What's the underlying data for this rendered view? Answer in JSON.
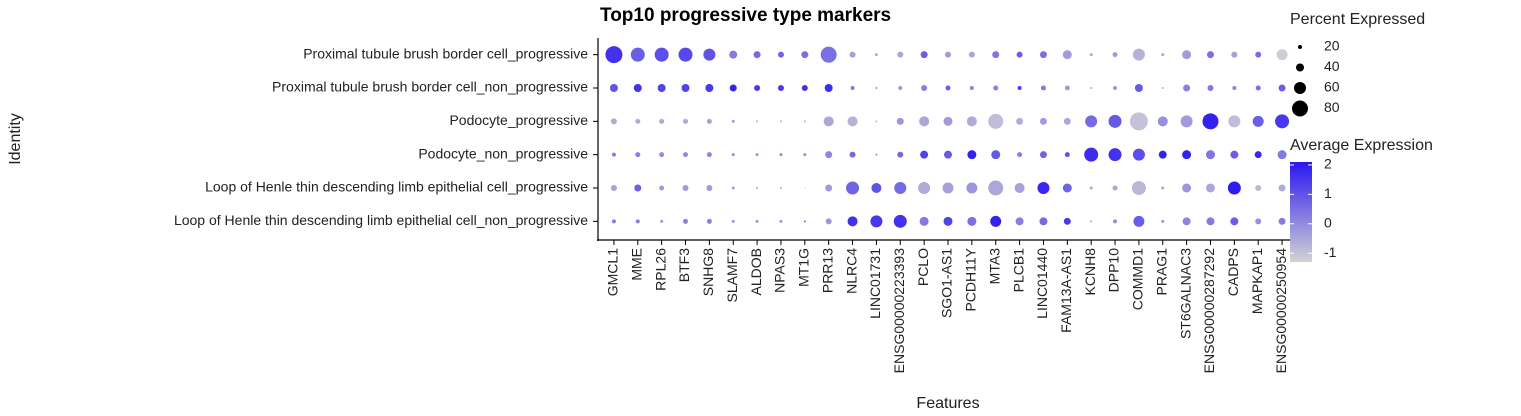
{
  "chart_data": {
    "type": "dotplot",
    "title": "Top10 progressive type markers",
    "x_label": "Features",
    "y_label": "Identity",
    "categories": [
      "GMCL1",
      "MME",
      "RPL26",
      "BTF3",
      "SNHG8",
      "SLAMF7",
      "ALDOB",
      "NPAS3",
      "MT1G",
      "PRR13",
      "NLRC4",
      "LINC01731",
      "ENSG00000223393",
      "PCLO",
      "SGO1-AS1",
      "PCDH11Y",
      "MTA3",
      "PLCB1",
      "LINC01440",
      "FAM13A-AS1",
      "KCNH8",
      "DPP10",
      "COMMD1",
      "PRAG1",
      "ST6GALNAC3",
      "ENSG00000287292",
      "CADPS",
      "MAPKAP1",
      "ENSG00000250954"
    ],
    "rows": [
      "Proximal tubule brush border cell_progressive",
      "Proximal tubule brush border cell_non_progressive",
      "Podocyte_progressive",
      "Podocyte_non_progressive",
      "Loop of Henle thin descending limb epithelial cell_progressive",
      "Loop of Henle thin descending limb epithelial cell_non_progressive"
    ],
    "percent_expressed": [
      [
        85,
        70,
        70,
        70,
        60,
        40,
        35,
        30,
        35,
        80,
        30,
        15,
        30,
        35,
        30,
        30,
        35,
        30,
        35,
        45,
        15,
        25,
        60,
        15,
        45,
        35,
        30,
        30,
        55
      ],
      [
        40,
        40,
        40,
        40,
        40,
        35,
        30,
        30,
        30,
        40,
        20,
        10,
        20,
        30,
        25,
        20,
        25,
        20,
        25,
        25,
        10,
        20,
        40,
        10,
        35,
        30,
        20,
        25,
        35
      ],
      [
        30,
        25,
        25,
        25,
        25,
        15,
        10,
        10,
        10,
        50,
        50,
        10,
        35,
        50,
        45,
        50,
        75,
        35,
        35,
        35,
        60,
        65,
        90,
        50,
        60,
        80,
        60,
        55,
        70
      ],
      [
        20,
        25,
        25,
        25,
        25,
        15,
        15,
        15,
        15,
        35,
        30,
        10,
        30,
        40,
        40,
        45,
        45,
        25,
        35,
        25,
        70,
        65,
        60,
        40,
        45,
        45,
        40,
        35,
        45
      ],
      [
        30,
        35,
        25,
        30,
        30,
        15,
        10,
        10,
        5,
        35,
        65,
        50,
        60,
        60,
        55,
        55,
        75,
        50,
        60,
        45,
        15,
        25,
        70,
        15,
        45,
        45,
        65,
        30,
        35
      ],
      [
        20,
        20,
        15,
        25,
        25,
        15,
        15,
        15,
        10,
        30,
        50,
        60,
        65,
        45,
        45,
        45,
        55,
        40,
        40,
        35,
        10,
        20,
        55,
        15,
        40,
        40,
        40,
        30,
        35
      ]
    ],
    "average_expression": [
      [
        1.6,
        0.8,
        1.1,
        1.2,
        1.0,
        0.3,
        0.6,
        0.7,
        0.5,
        0.5,
        -0.4,
        -0.5,
        -0.5,
        0.8,
        -0.3,
        -0.5,
        0.4,
        0.8,
        0.5,
        -0.3,
        -0.5,
        -0.3,
        -0.7,
        -0.5,
        -0.3,
        0.5,
        -0.4,
        0.5,
        -1.2
      ],
      [
        1.0,
        1.6,
        1.3,
        1.3,
        1.5,
        1.9,
        1.5,
        1.5,
        1.6,
        1.7,
        0.3,
        0.0,
        -0.2,
        0.2,
        0.8,
        0.2,
        0.2,
        1.5,
        0.3,
        -0.3,
        -0.6,
        -0.3,
        0.9,
        -0.5,
        0.2,
        0.3,
        0.1,
        0.5,
        0.8
      ],
      [
        -0.6,
        -0.6,
        -0.5,
        -0.5,
        -0.4,
        -0.3,
        -0.6,
        -0.6,
        -0.6,
        -0.5,
        -0.7,
        -0.8,
        -0.2,
        -0.5,
        -0.3,
        -0.6,
        -0.9,
        -0.6,
        -0.3,
        -0.5,
        0.6,
        0.9,
        -1.0,
        -0.1,
        -0.3,
        1.9,
        -0.9,
        0.8,
        1.5
      ],
      [
        0.2,
        0.2,
        0.0,
        0.0,
        0.1,
        0.0,
        -0.2,
        0.0,
        0.0,
        0.1,
        0.6,
        0.0,
        0.6,
        1.3,
        0.9,
        1.9,
        0.9,
        0.2,
        0.7,
        1.0,
        1.7,
        1.6,
        1.1,
        1.9,
        1.9,
        0.4,
        0.8,
        1.8,
        0.3
      ],
      [
        -0.4,
        0.8,
        -0.3,
        -0.3,
        -0.3,
        -0.3,
        -0.4,
        -0.6,
        -0.5,
        -0.3,
        0.7,
        1.0,
        0.6,
        -0.6,
        -0.4,
        -0.2,
        -0.5,
        -0.4,
        1.8,
        0.7,
        -0.5,
        -0.5,
        -0.8,
        -0.5,
        -0.2,
        -0.5,
        2.0,
        -0.8,
        -0.6
      ],
      [
        0.2,
        0.2,
        -0.2,
        0.2,
        0.2,
        -0.2,
        -0.2,
        -0.2,
        0.6,
        -0.2,
        1.6,
        1.5,
        1.6,
        0.3,
        1.3,
        0.5,
        1.9,
        0.2,
        0.6,
        1.5,
        -0.4,
        0.0,
        0.8,
        -0.2,
        0.1,
        0.3,
        0.8,
        -0.1,
        0.3
      ]
    ],
    "size_legend": {
      "title": "Percent Expressed",
      "values": [
        20,
        40,
        60,
        80
      ]
    },
    "color_legend": {
      "title": "Average Expression",
      "lim": [
        -1.3,
        2.1
      ],
      "ticks": [
        -1,
        0,
        1,
        2
      ],
      "low_color": "#d3d3d3",
      "high_color": "#2a16f2"
    }
  }
}
